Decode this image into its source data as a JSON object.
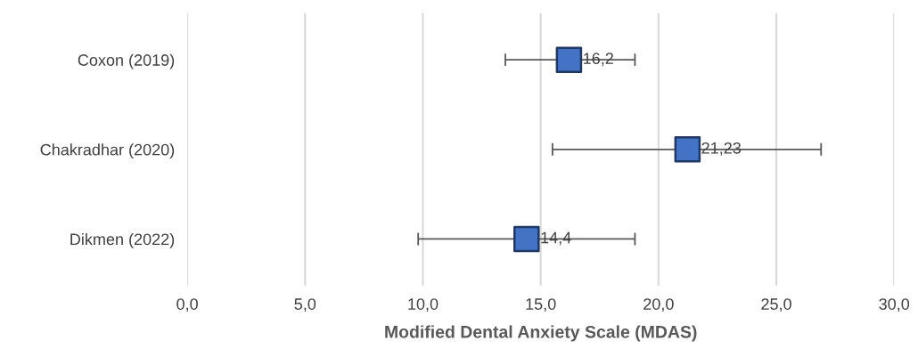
{
  "chart_data": {
    "type": "scatter",
    "orientation": "horizontal",
    "xlabel": "Modified Dental Anxiety Scale (MDAS)",
    "categories": [
      "Coxon (2019)",
      "Chakradhar (2020)",
      "Dikmen (2022)"
    ],
    "values": [
      16.2,
      21.23,
      14.4
    ],
    "errors": [
      [
        13.5,
        19.0
      ],
      [
        15.5,
        26.9
      ],
      [
        9.8,
        19.0
      ]
    ],
    "color": "#4472c4",
    "marker": "square",
    "data_labels": true,
    "value_labels": [
      "16,2",
      "21,23",
      "14,4"
    ],
    "xlim": [
      0,
      30
    ],
    "xticks": [
      {
        "value": 0,
        "label": "0,0"
      },
      {
        "value": 5,
        "label": "5,0"
      },
      {
        "value": 10,
        "label": "10,0"
      },
      {
        "value": 15,
        "label": "15,0"
      },
      {
        "value": 20,
        "label": "20,0"
      },
      {
        "value": 25,
        "label": "25,0"
      },
      {
        "value": 30,
        "label": "30,0"
      }
    ],
    "grid": "x"
  }
}
